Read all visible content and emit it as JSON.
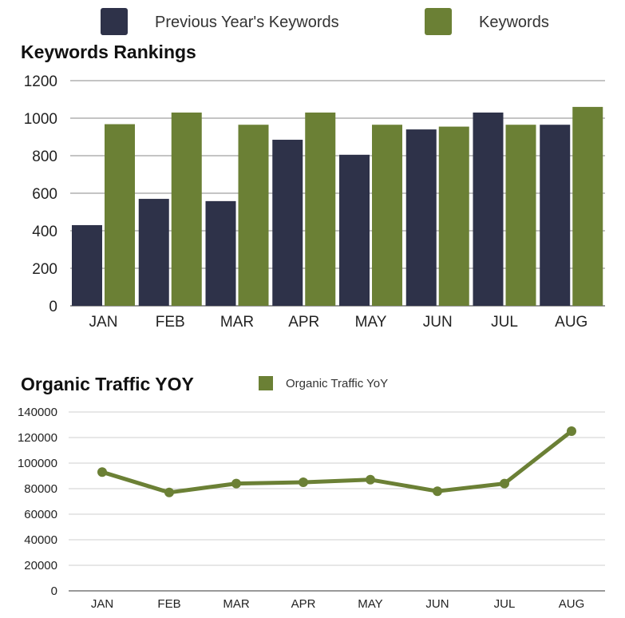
{
  "chart_data": [
    {
      "type": "bar",
      "title": "Keywords Rankings",
      "xlabel": "",
      "ylabel": "",
      "categories": [
        "JAN",
        "FEB",
        "MAR",
        "APR",
        "MAY",
        "JUN",
        "JUL",
        "AUG"
      ],
      "series": [
        {
          "name": "Previous Year's Keywords",
          "color": "#2e3249",
          "values": [
            430,
            570,
            558,
            885,
            805,
            940,
            1030,
            965
          ]
        },
        {
          "name": "Keywords",
          "color": "#6b8035",
          "values": [
            968,
            1030,
            965,
            1030,
            965,
            955,
            965,
            1060
          ]
        }
      ],
      "ylim": [
        0,
        1200
      ],
      "yticks": [
        "0",
        "200",
        "400",
        "600",
        "800",
        "1000",
        "1200"
      ],
      "grid": true,
      "legend": "top"
    },
    {
      "type": "line",
      "title": "Organic Traffic YOY",
      "xlabel": "",
      "ylabel": "",
      "categories": [
        "JAN",
        "FEB",
        "MAR",
        "APR",
        "MAY",
        "JUN",
        "JUL",
        "AUG"
      ],
      "series": [
        {
          "name": "Organic Traffic YoY",
          "color": "#6b8035",
          "values": [
            93000,
            77000,
            84000,
            85000,
            87000,
            78000,
            84000,
            125000
          ]
        }
      ],
      "ylim": [
        0,
        140000
      ],
      "yticks": [
        "0",
        "20000",
        "40000",
        "60000",
        "80000",
        "100000",
        "120000",
        "140000"
      ],
      "grid": true,
      "legend": "top-right"
    }
  ]
}
